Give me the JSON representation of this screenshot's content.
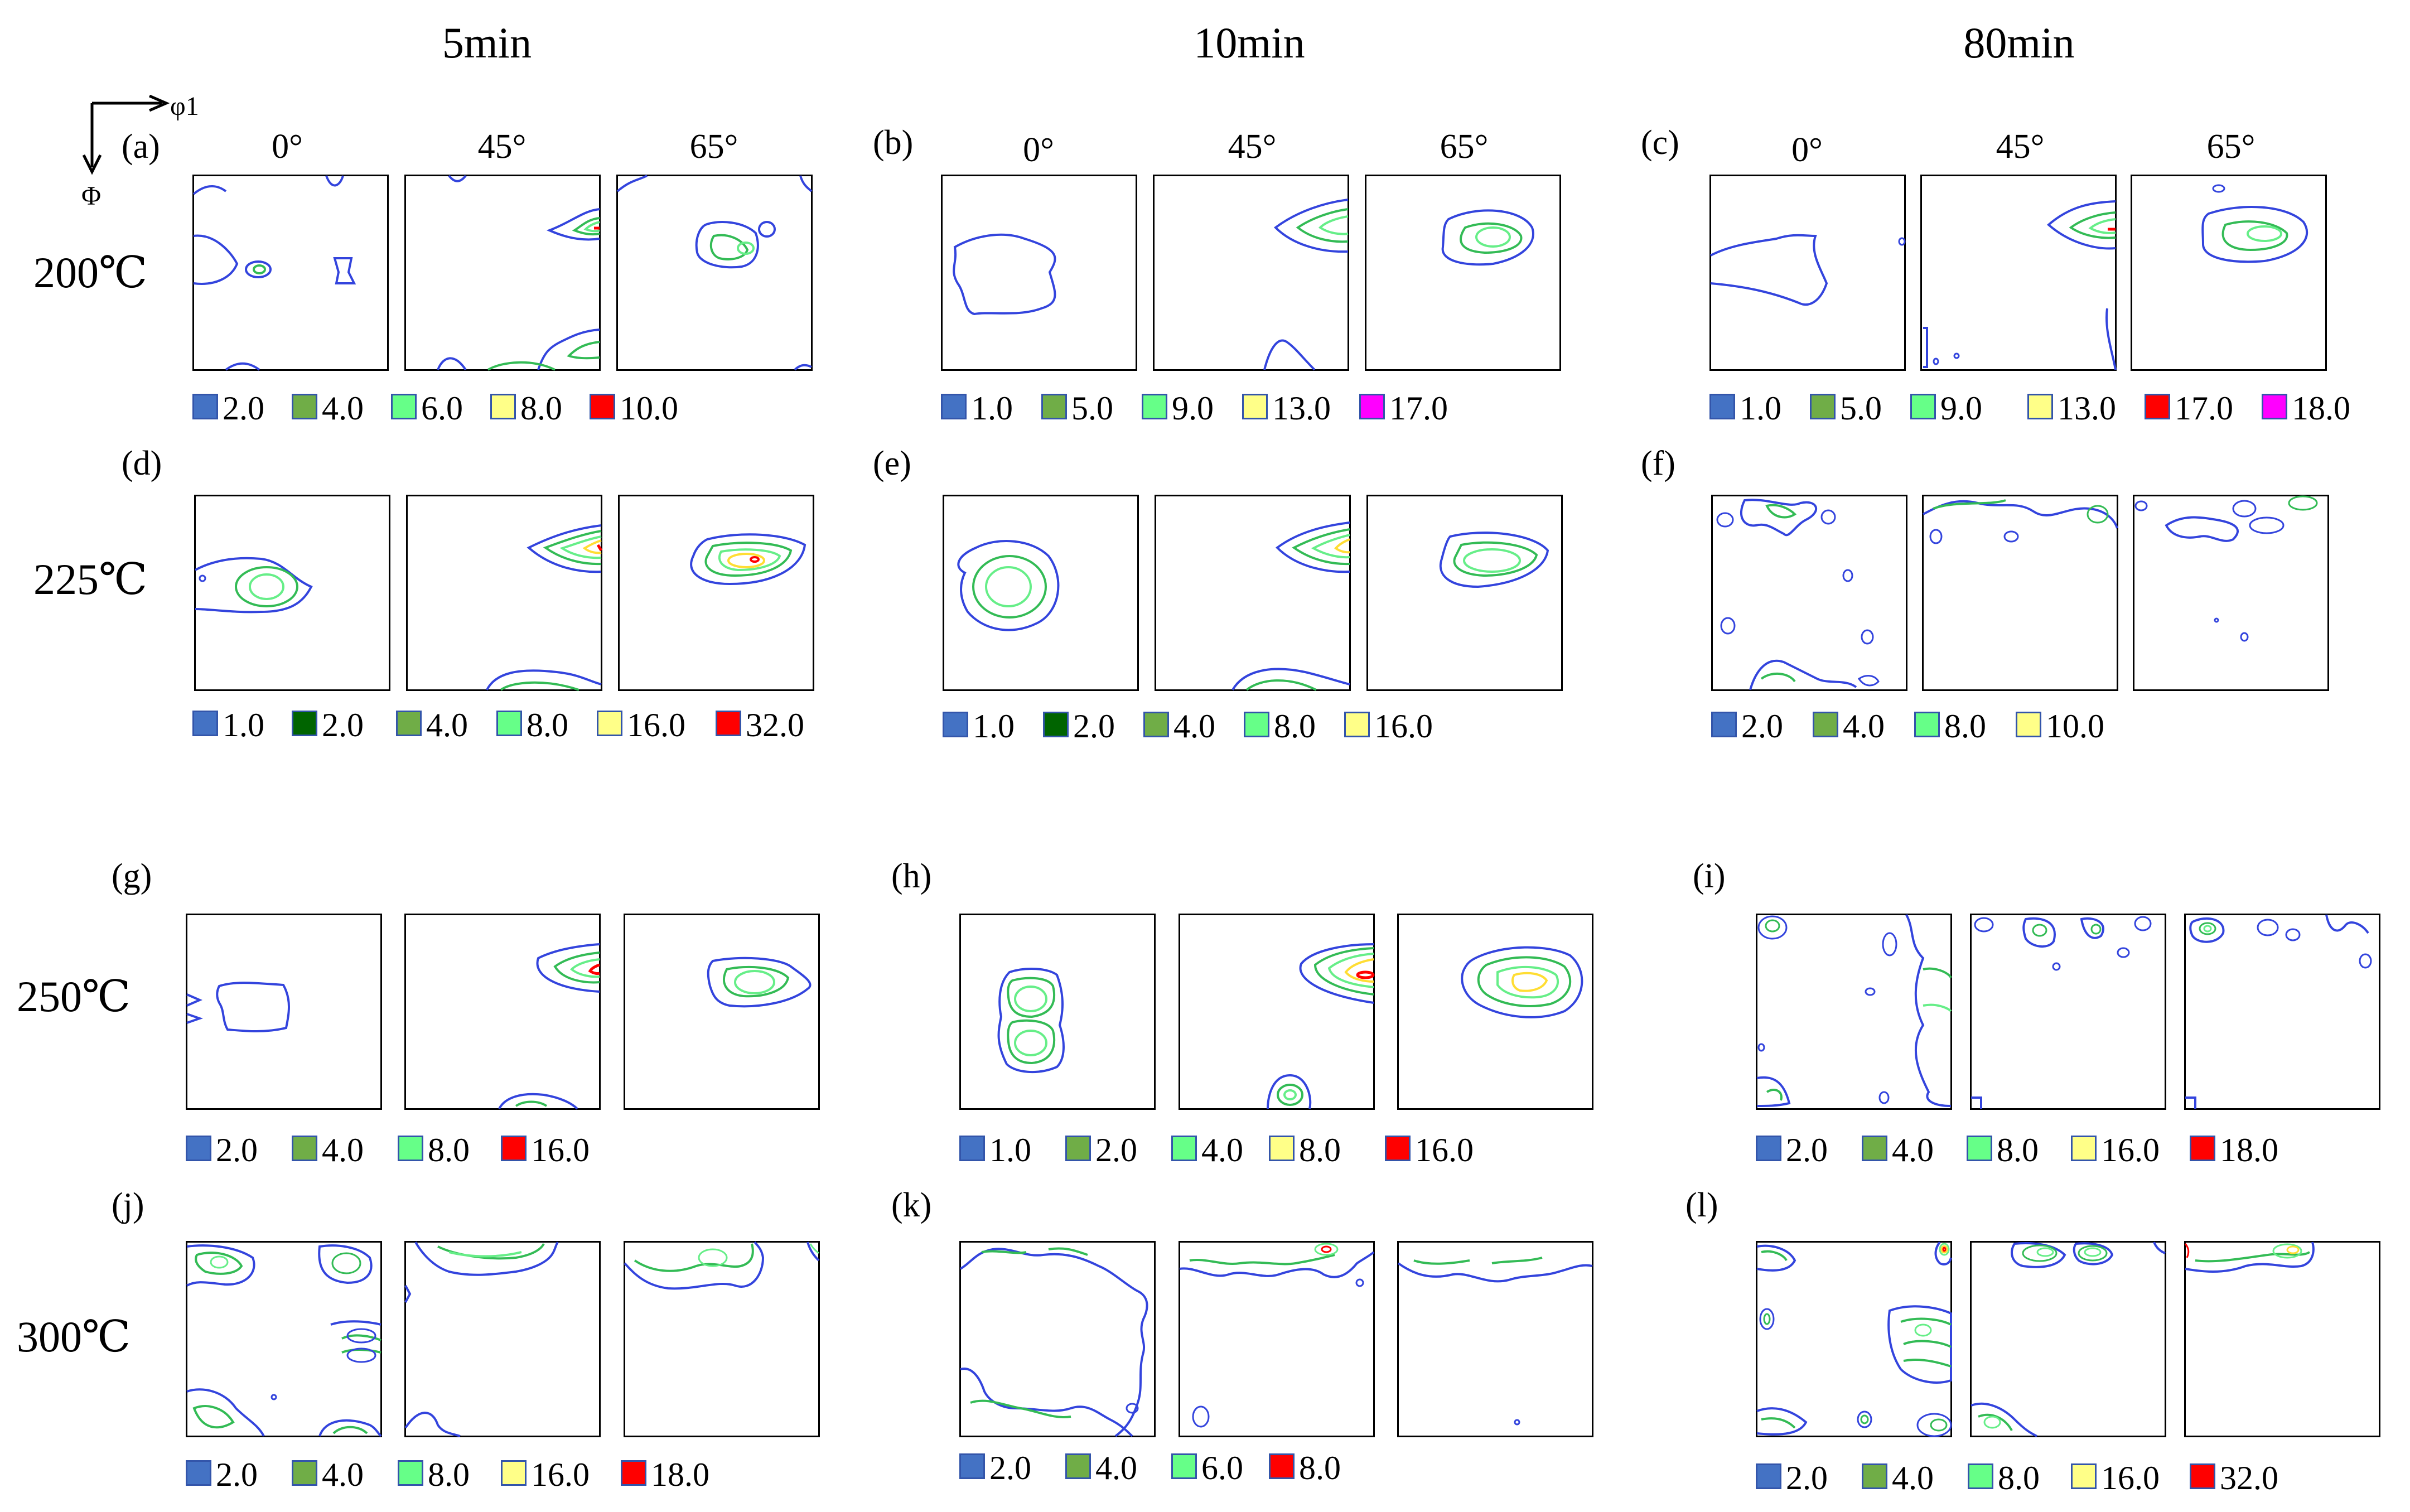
{
  "columns": [
    "5min",
    "10min",
    "80min"
  ],
  "axis": {
    "x": "φ1",
    "y": "Φ"
  },
  "rows": [
    {
      "temperature": "200℃",
      "panels": [
        {
          "tag": "(a)",
          "angles": [
            "0°",
            "45°",
            "65°"
          ],
          "legend": [
            "2.0",
            "4.0",
            "6.0",
            "8.0",
            "10.0"
          ],
          "legend_colors": [
            "#4472c4",
            "#70ad47",
            "#66ff88",
            "#ffff88",
            "#ff0000"
          ]
        },
        {
          "tag": "(b)",
          "angles": [
            "0°",
            "45°",
            "65°"
          ],
          "legend": [
            "1.0",
            "5.0",
            "9.0",
            "13.0",
            "17.0"
          ],
          "legend_colors": [
            "#4472c4",
            "#70ad47",
            "#66ff88",
            "#ffff88",
            "#ff00ff"
          ]
        },
        {
          "tag": "(c)",
          "angles": [
            "0°",
            "45°",
            "65°"
          ],
          "legend": [
            "1.0",
            "5.0",
            "9.0",
            "13.0",
            "17.0",
            "18.0"
          ],
          "legend_colors": [
            "#4472c4",
            "#70ad47",
            "#66ff88",
            "#ffff88",
            "#ff0000",
            "#ff00ff"
          ]
        }
      ]
    },
    {
      "temperature": "225℃",
      "panels": [
        {
          "tag": "(d)",
          "angles": [],
          "legend": [
            "1.0",
            "2.0",
            "4.0",
            "8.0",
            "16.0",
            "32.0"
          ],
          "legend_colors": [
            "#4472c4",
            "#006400",
            "#70ad47",
            "#66ff88",
            "#ffff88",
            "#ff0000"
          ]
        },
        {
          "tag": "(e)",
          "angles": [],
          "legend": [
            "1.0",
            "2.0",
            "4.0",
            "8.0",
            "16.0"
          ],
          "legend_colors": [
            "#4472c4",
            "#006400",
            "#70ad47",
            "#66ff88",
            "#ffff88"
          ]
        },
        {
          "tag": "(f)",
          "angles": [],
          "legend": [
            "2.0",
            "4.0",
            "8.0",
            "10.0"
          ],
          "legend_colors": [
            "#4472c4",
            "#70ad47",
            "#66ff88",
            "#ffff88"
          ]
        }
      ]
    },
    {
      "temperature": "250℃",
      "panels": [
        {
          "tag": "(g)",
          "angles": [],
          "legend": [
            "2.0",
            "4.0",
            "8.0",
            "16.0"
          ],
          "legend_colors": [
            "#4472c4",
            "#70ad47",
            "#66ff88",
            "#ff0000"
          ]
        },
        {
          "tag": "(h)",
          "angles": [],
          "legend": [
            "1.0",
            "2.0",
            "4.0",
            "8.0",
            "16.0"
          ],
          "legend_colors": [
            "#4472c4",
            "#70ad47",
            "#66ff88",
            "#ffff88",
            "#ff0000"
          ]
        },
        {
          "tag": "(i)",
          "angles": [],
          "legend": [
            "2.0",
            "4.0",
            "8.0",
            "16.0",
            "18.0"
          ],
          "legend_colors": [
            "#4472c4",
            "#70ad47",
            "#66ff88",
            "#ffff88",
            "#ff0000"
          ]
        }
      ]
    },
    {
      "temperature": "300℃",
      "panels": [
        {
          "tag": "(j)",
          "angles": [],
          "legend": [
            "2.0",
            "4.0",
            "8.0",
            "16.0",
            "18.0"
          ],
          "legend_colors": [
            "#4472c4",
            "#70ad47",
            "#66ff88",
            "#ffff88",
            "#ff0000"
          ]
        },
        {
          "tag": "(k)",
          "angles": [],
          "legend": [
            "2.0",
            "4.0",
            "6.0",
            "8.0"
          ],
          "legend_colors": [
            "#4472c4",
            "#70ad47",
            "#66ff88",
            "#ff0000"
          ]
        },
        {
          "tag": "(l)",
          "angles": [],
          "legend": [
            "2.0",
            "4.0",
            "8.0",
            "16.0",
            "32.0"
          ],
          "legend_colors": [
            "#4472c4",
            "#70ad47",
            "#66ff88",
            "#ffff88",
            "#ff0000"
          ]
        }
      ]
    }
  ]
}
